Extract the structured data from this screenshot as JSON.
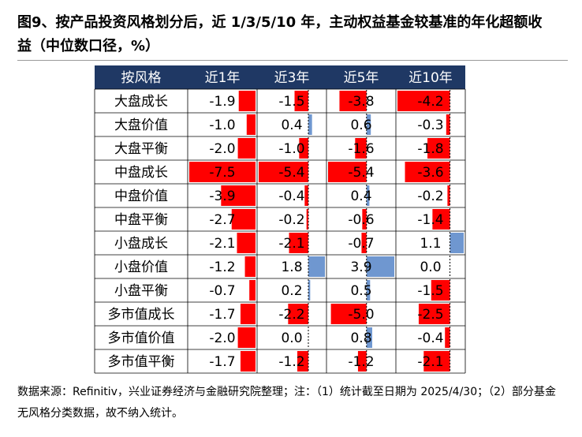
{
  "header": {
    "title": "图9、按产品投资风格划分后，近 1/3/5/10 年，主动权益基金较基准的年化超额收益（中位数口径，%）"
  },
  "table": {
    "columns": [
      "按风格",
      "近1年",
      "近3年",
      "近5年",
      "近10年"
    ],
    "negative_color": "#ff0000",
    "positive_color": "#6f97d0",
    "rows": [
      {
        "name": "大盘成长",
        "values": [
          -1.9,
          -1.5,
          -3.8,
          -4.2
        ],
        "value_labels": [
          "-1.9",
          "-1.5",
          "-3.8",
          "-4.2"
        ]
      },
      {
        "name": "大盘价值",
        "values": [
          -1,
          0.4,
          0.6,
          -0.3
        ],
        "value_labels": [
          "-1.0",
          "0.4",
          "0.6",
          "-0.3"
        ]
      },
      {
        "name": "大盘平衡",
        "values": [
          -2,
          -1,
          -1.6,
          -1.8
        ],
        "value_labels": [
          "-2.0",
          "-1.0",
          "-1.6",
          "-1.8"
        ]
      },
      {
        "name": "中盘成长",
        "values": [
          -7.5,
          -5.4,
          -5.4,
          -3.6
        ],
        "value_labels": [
          "-7.5",
          "-5.4",
          "-5.4",
          "-3.6"
        ]
      },
      {
        "name": "中盘价值",
        "values": [
          -3.9,
          -0.4,
          0.4,
          -0.2
        ],
        "value_labels": [
          "-3.9",
          "-0.4",
          "0.4",
          "-0.2"
        ]
      },
      {
        "name": "中盘平衡",
        "values": [
          -2.7,
          -0.2,
          -0.6,
          -1.4
        ],
        "value_labels": [
          "-2.7",
          "-0.2",
          "-0.6",
          "-1.4"
        ]
      },
      {
        "name": "小盘成长",
        "values": [
          -2.1,
          -2.1,
          -0.7,
          1.1
        ],
        "value_labels": [
          "-2.1",
          "-2.1",
          "-0.7",
          "1.1"
        ]
      },
      {
        "name": "小盘价值",
        "values": [
          -1.2,
          1.8,
          3.9,
          0
        ],
        "value_labels": [
          "-1.2",
          "1.8",
          "3.9",
          "0.0"
        ]
      },
      {
        "name": "小盘平衡",
        "values": [
          -0.7,
          0.2,
          0.5,
          -1.5
        ],
        "value_labels": [
          "-0.7",
          "0.2",
          "0.5",
          "-1.5"
        ]
      },
      {
        "name": "多市值成长",
        "values": [
          -1.7,
          -2.2,
          -5,
          -2.5
        ],
        "value_labels": [
          "-1.7",
          "-2.2",
          "-5.0",
          "-2.5"
        ]
      },
      {
        "name": "多市值价值",
        "values": [
          -2,
          0,
          0.8,
          -0.4
        ],
        "value_labels": [
          "-2.0",
          "0.0",
          "0.8",
          "-0.4"
        ]
      },
      {
        "name": "多市值平衡",
        "values": [
          -1.7,
          -1.2,
          -1.2,
          -2.1
        ],
        "value_labels": [
          "-1.7",
          "-1.2",
          "-1.2",
          "-2.1"
        ]
      }
    ]
  },
  "footer": {
    "source": "数据来源：Refinitiv，兴业证券经济与金融研究院整理；注：（1）统计截至日期为 2025/4/30；（2）部分基金无风格分类数据，故不纳入统计。"
  }
}
